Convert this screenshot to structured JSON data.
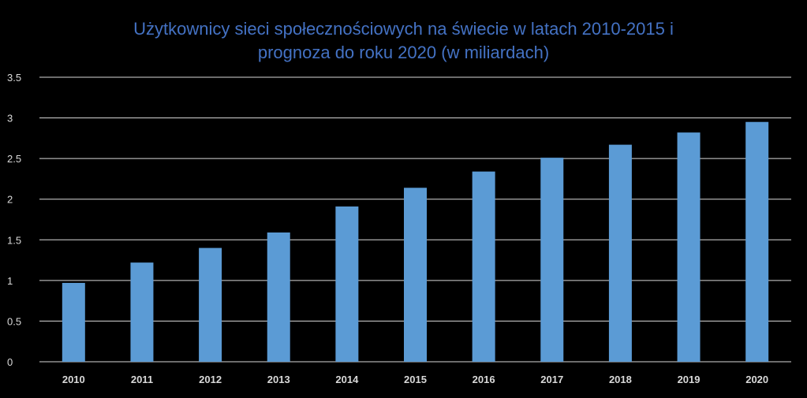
{
  "chart_data": {
    "type": "bar",
    "title": "Użytkownicy sieci społecznościowych na świecie w latach 2010-2015 i prognoza do roku 2020 (w miliardach)",
    "title_lines": [
      "Użytkownicy sieci społecznościowych na świecie w latach 2010-2015 i",
      "prognoza do roku 2020 (w miliardach)"
    ],
    "categories": [
      "2010",
      "2011",
      "2012",
      "2013",
      "2014",
      "2015",
      "2016",
      "2017",
      "2018",
      "2019",
      "2020"
    ],
    "values": [
      0.97,
      1.22,
      1.4,
      1.59,
      1.91,
      2.14,
      2.34,
      2.51,
      2.67,
      2.82,
      2.95
    ],
    "yticks": [
      "0",
      "0.5",
      "1",
      "1.5",
      "2",
      "2.5",
      "3",
      "3.5"
    ],
    "ylim": [
      0,
      3.5
    ],
    "grid": true,
    "legend": "none"
  },
  "colors": {
    "background": "#000000",
    "bar": "#5B9BD5",
    "title": "#4472C4",
    "grid": "#d9d9d9",
    "text": "#d9d9d9"
  }
}
